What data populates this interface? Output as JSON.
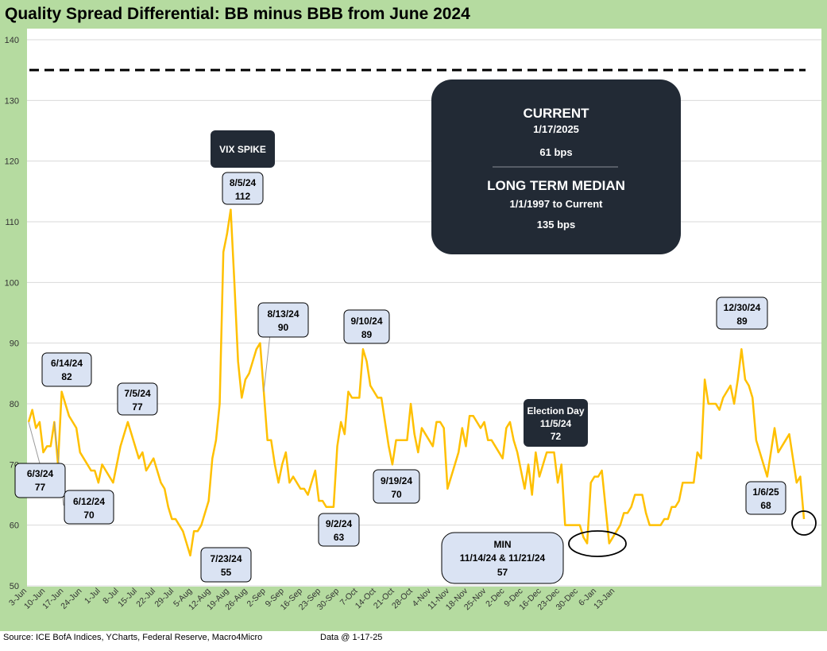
{
  "title": "Quality Spread Differential: BB minus BBB from June 2024",
  "source": "Source: ICE BofA Indices, YCharts, Federal Reserve, Macro4Micro",
  "data_date": "Data @ 1-17-25",
  "colors": {
    "frame": "#b5dba0",
    "line": "#ffc000",
    "label_box": "#dae3f3",
    "dark_box": "#222a35",
    "median_line": "#000000"
  },
  "info_box": {
    "current_title": "CURRENT",
    "current_date": "1/17/2025",
    "current_value": "61 bps",
    "median_title": "LONG TERM MEDIAN",
    "median_range": "1/1/1997 to Current",
    "median_value": "135 bps"
  },
  "chart_data": {
    "type": "line",
    "ylim": [
      50,
      140
    ],
    "yticks": [
      50,
      60,
      70,
      80,
      90,
      100,
      110,
      120,
      130,
      140
    ],
    "grid": true,
    "reference_line": {
      "value": 135,
      "style": "dashed"
    },
    "x_tick_labels": [
      "3-Jun",
      "10-Jun",
      "17-Jun",
      "24-Jun",
      "1-Jul",
      "8-Jul",
      "15-Jul",
      "22-Jul",
      "29-Jul",
      "5-Aug",
      "12-Aug",
      "19-Aug",
      "26-Aug",
      "2-Sep",
      "9-Sep",
      "16-Sep",
      "23-Sep",
      "30-Sep",
      "7-Oct",
      "14-Oct",
      "21-Oct",
      "28-Oct",
      "4-Nov",
      "11-Nov",
      "18-Nov",
      "25-Nov",
      "2-Dec",
      "9-Dec",
      "16-Dec",
      "23-Dec",
      "30-Dec",
      "6-Jan",
      "13-Jan"
    ],
    "series": [
      {
        "values": [
          77,
          79,
          76,
          77,
          72,
          73,
          73,
          77,
          70,
          82,
          80,
          78,
          77,
          76,
          72,
          71,
          70,
          69,
          69,
          67,
          70,
          69,
          68,
          67,
          70,
          73,
          75,
          77,
          75,
          73,
          71,
          72,
          69,
          70,
          71,
          69,
          67,
          66,
          63,
          61,
          61,
          60,
          59,
          57,
          55,
          59,
          59,
          60,
          62,
          64,
          71,
          74,
          80,
          105,
          108,
          112,
          100,
          87,
          81,
          84,
          85,
          87,
          89,
          90,
          82,
          74,
          74,
          70,
          67,
          70,
          72,
          67,
          68,
          67,
          66,
          66,
          65,
          67,
          69,
          64,
          64,
          63,
          63,
          63,
          73,
          77,
          75,
          82,
          81,
          81,
          81,
          89,
          87,
          83,
          82,
          81,
          81,
          77,
          73,
          70,
          74,
          74,
          74,
          74,
          80,
          75,
          72,
          76,
          75,
          74,
          73,
          77,
          77,
          76,
          66,
          68,
          70,
          72,
          76,
          73,
          78,
          78,
          77,
          76,
          77,
          74,
          74,
          73,
          72,
          71,
          76,
          77,
          74,
          72,
          69,
          66,
          70,
          65,
          72,
          68,
          70,
          72,
          72,
          72,
          67,
          70,
          60,
          60,
          60,
          60,
          60,
          58,
          57,
          67,
          68,
          68,
          69,
          63,
          57,
          58,
          59,
          60,
          62,
          62,
          63,
          65,
          65,
          65,
          62,
          60,
          60,
          60,
          60,
          61,
          61,
          63,
          63,
          64,
          67,
          67,
          67,
          67,
          72,
          71,
          84,
          80,
          80,
          80,
          79,
          81,
          82,
          83,
          80,
          84,
          89,
          84,
          83,
          81,
          74,
          72,
          70,
          68,
          72,
          76,
          72,
          73,
          74,
          75,
          71,
          67,
          68,
          61
        ]
      }
    ],
    "annotations": [
      {
        "date": "6/3/24",
        "value": "77"
      },
      {
        "date": "6/12/24",
        "value": "70"
      },
      {
        "date": "6/14/24",
        "value": "82"
      },
      {
        "date": "7/5/24",
        "value": "77"
      },
      {
        "date": "7/23/24",
        "value": "55"
      },
      {
        "date": "8/5/24",
        "value": "112"
      },
      {
        "date": "8/13/24",
        "value": "90"
      },
      {
        "date": "9/2/24",
        "value": "63"
      },
      {
        "date": "9/10/24",
        "value": "89"
      },
      {
        "date": "9/19/24",
        "value": "70"
      },
      {
        "date": "11/14/24 & 11/21/24",
        "value": "57",
        "title": "MIN"
      },
      {
        "date": "12/30/24",
        "value": "89"
      },
      {
        "date": "1/6/25",
        "value": "68"
      }
    ],
    "event_labels": [
      {
        "text": "VIX SPIKE"
      },
      {
        "title": "Election Day",
        "date": "11/5/24",
        "value": "72"
      }
    ]
  }
}
